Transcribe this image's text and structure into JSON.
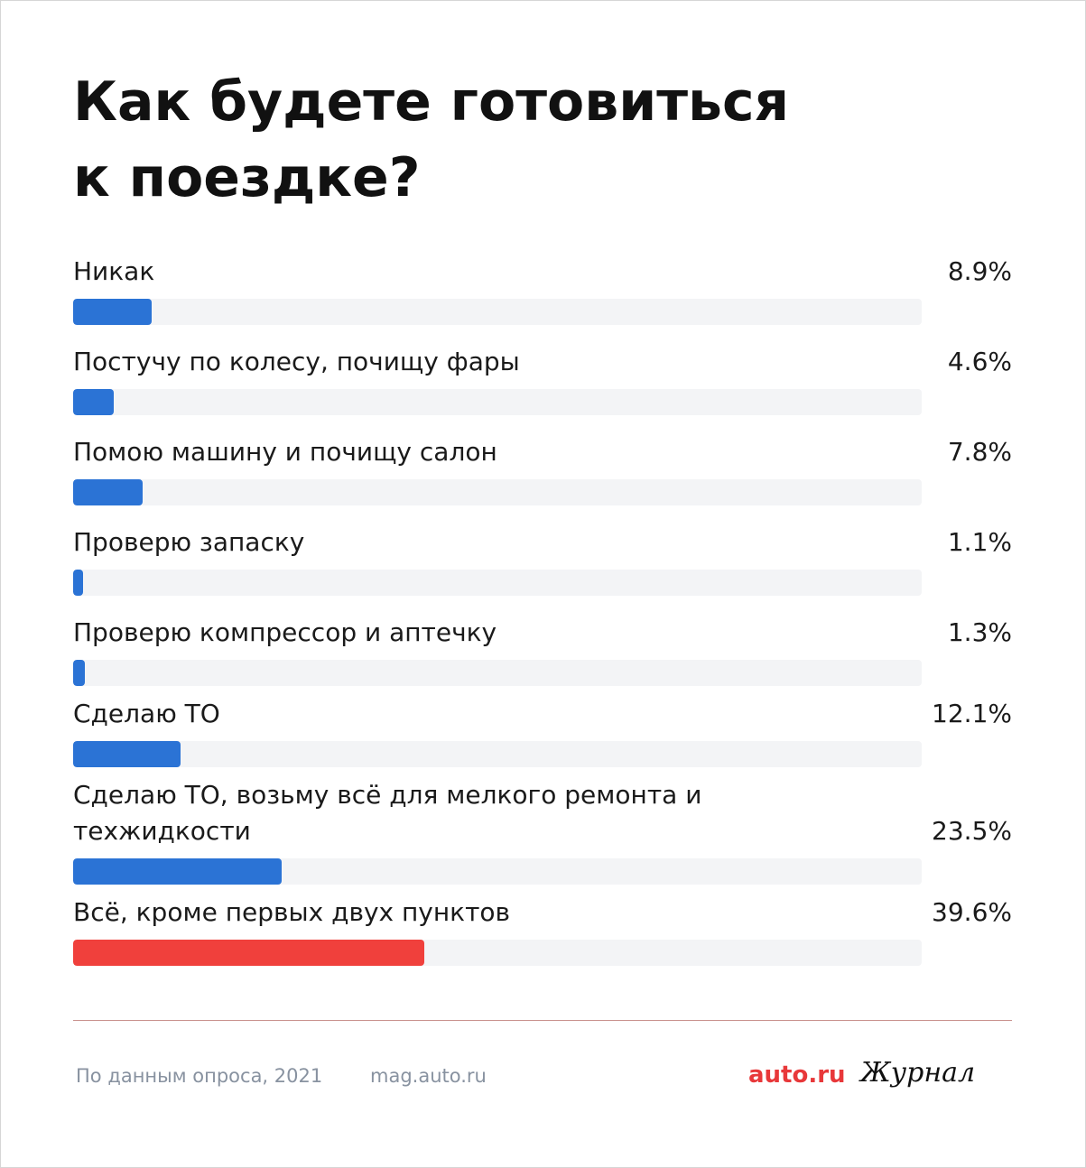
{
  "chart_data": {
    "type": "bar",
    "title": "Как будете готовиться к поездке?",
    "title_lines": [
      "Как будете готовиться",
      "к поездке?"
    ],
    "categories": [
      "Никак",
      "Постучу по колесу, почищу фары",
      "Помою машину и почищу салон",
      "Проверю запаску",
      "Проверю компрессор и аптечку",
      "Сделаю ТО",
      "Сделаю ТО, возьму всё для мелкого ремонта и техжидкости",
      "Всё, кроме первых двух пунктов"
    ],
    "label_lines": [
      [
        "Никак"
      ],
      [
        "Постучу по колесу, почищу фары"
      ],
      [
        "Помою машину и почищу салон"
      ],
      [
        "Проверю запаску"
      ],
      [
        "Проверю компрессор и аптечку"
      ],
      [
        "Сделаю ТО"
      ],
      [
        "Сделаю ТО, возьму всё для мелкого ремонта и",
        "техжидкости"
      ],
      [
        "Всё, кроме первых двух пунктов"
      ]
    ],
    "values": [
      8.9,
      4.6,
      7.8,
      1.1,
      1.3,
      12.1,
      23.5,
      39.6
    ],
    "value_labels": [
      "8.9%",
      "4.6%",
      "7.8%",
      "1.1%",
      "1.3%",
      "12.1%",
      "23.5%",
      "39.6%"
    ],
    "highlight_index": 7,
    "colors": {
      "bar": "#2b73d5",
      "highlight": "#f0403c",
      "track": "#f3f4f6"
    }
  },
  "footer": {
    "source": "По данным опроса, 2021",
    "site": "mag.auto.ru",
    "brand": "auto.ru",
    "journal": "Журнал"
  }
}
